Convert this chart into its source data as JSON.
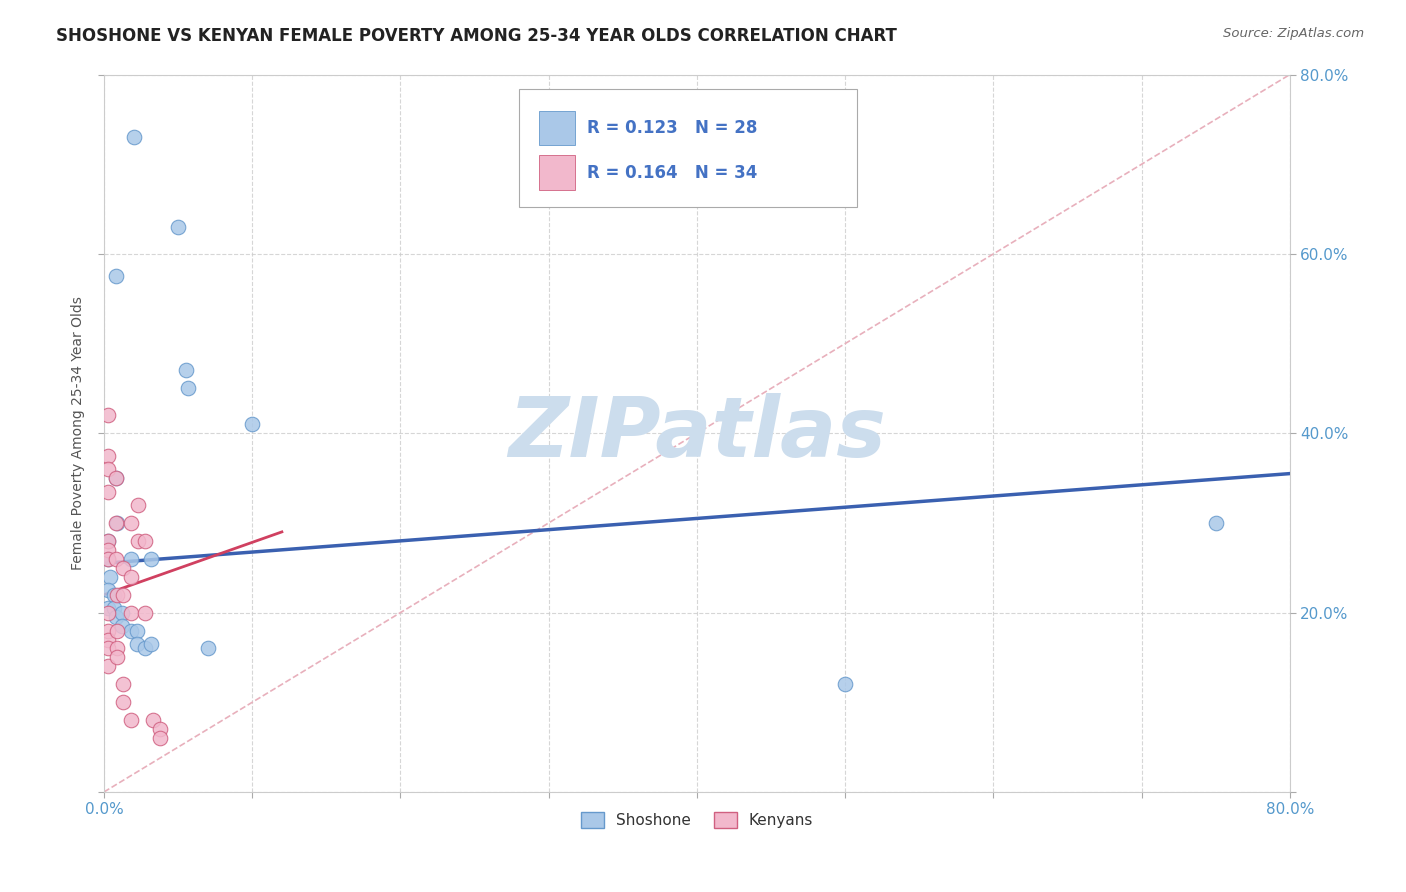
{
  "title": "SHOSHONE VS KENYAN FEMALE POVERTY AMONG 25-34 YEAR OLDS CORRELATION CHART",
  "source": "Source: ZipAtlas.com",
  "ylabel": "Female Poverty Among 25-34 Year Olds",
  "xlim": [
    0,
    0.8
  ],
  "ylim": [
    0,
    0.8
  ],
  "xticks": [
    0.0,
    0.1,
    0.2,
    0.3,
    0.4,
    0.5,
    0.6,
    0.7,
    0.8
  ],
  "yticks": [
    0.0,
    0.2,
    0.4,
    0.6,
    0.8
  ],
  "background_color": "#ffffff",
  "grid_color": "#cccccc",
  "shoshone_face_color": "#aac8e8",
  "kenyan_face_color": "#f2b8cc",
  "shoshone_edge_color": "#6699cc",
  "kenyan_edge_color": "#d06080",
  "shoshone_line_color": "#3a60b0",
  "kenyan_line_color": "#d04060",
  "diagonal_color": "#e8b0bc",
  "R_shoshone": 0.123,
  "N_shoshone": 28,
  "R_kenyan": 0.164,
  "N_kenyan": 34,
  "legend_text_color": "#4472c4",
  "watermark_color": "#ccdded",
  "shoshone_x": [
    0.02,
    0.05,
    0.055,
    0.057,
    0.008,
    0.008,
    0.009,
    0.003,
    0.003,
    0.004,
    0.003,
    0.003,
    0.007,
    0.007,
    0.008,
    0.012,
    0.012,
    0.018,
    0.018,
    0.022,
    0.022,
    0.028,
    0.032,
    0.032,
    0.07,
    0.1,
    0.5,
    0.75
  ],
  "shoshone_y": [
    0.73,
    0.63,
    0.47,
    0.45,
    0.575,
    0.35,
    0.3,
    0.28,
    0.26,
    0.24,
    0.225,
    0.205,
    0.22,
    0.205,
    0.195,
    0.2,
    0.185,
    0.18,
    0.26,
    0.18,
    0.165,
    0.16,
    0.26,
    0.165,
    0.16,
    0.41,
    0.12,
    0.3
  ],
  "kenyan_x": [
    0.003,
    0.003,
    0.003,
    0.003,
    0.003,
    0.003,
    0.003,
    0.003,
    0.003,
    0.003,
    0.003,
    0.003,
    0.008,
    0.008,
    0.008,
    0.009,
    0.009,
    0.009,
    0.009,
    0.013,
    0.013,
    0.013,
    0.013,
    0.018,
    0.018,
    0.018,
    0.018,
    0.023,
    0.023,
    0.028,
    0.028,
    0.033,
    0.038,
    0.038
  ],
  "kenyan_y": [
    0.42,
    0.375,
    0.36,
    0.335,
    0.28,
    0.27,
    0.26,
    0.2,
    0.18,
    0.17,
    0.16,
    0.14,
    0.35,
    0.3,
    0.26,
    0.22,
    0.18,
    0.16,
    0.15,
    0.25,
    0.22,
    0.12,
    0.1,
    0.3,
    0.24,
    0.2,
    0.08,
    0.32,
    0.28,
    0.28,
    0.2,
    0.08,
    0.07,
    0.06
  ],
  "shoshone_line_x": [
    0.0,
    0.8
  ],
  "shoshone_line_y": [
    0.255,
    0.355
  ],
  "kenyan_line_x": [
    0.0,
    0.12
  ],
  "kenyan_line_y": [
    0.22,
    0.29
  ],
  "marker_size": 110
}
